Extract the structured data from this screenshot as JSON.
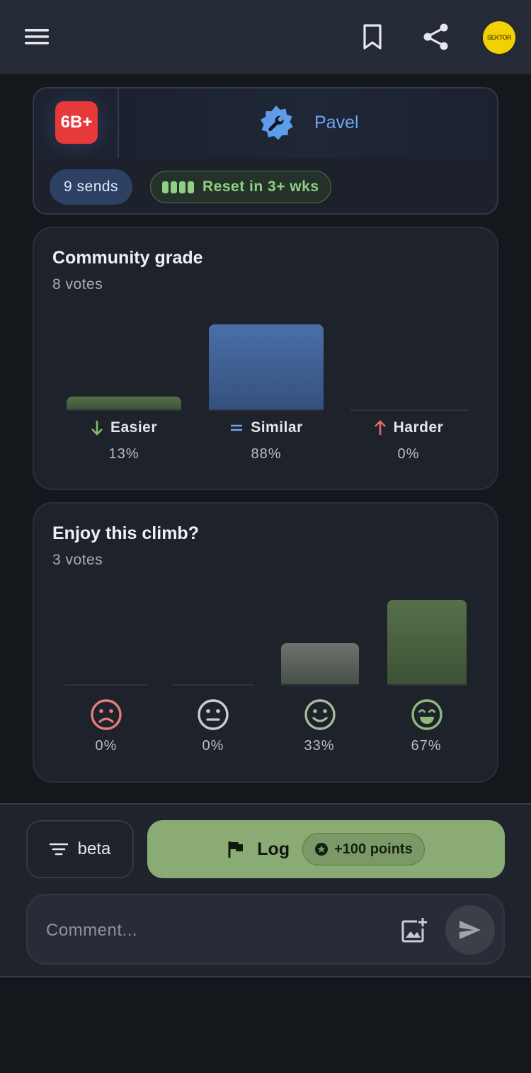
{
  "header": {
    "avatar_text": "SEKTOR"
  },
  "route": {
    "grade": "6B+",
    "grade_color": "#e5393a",
    "setter_name": "Pavel",
    "setter_icon": "wrench-gear-icon",
    "sends_chip": "9 sends",
    "reset_chip": "Reset in 3+ wks"
  },
  "community_grade": {
    "title": "Community grade",
    "votes": "8 votes",
    "columns": [
      {
        "label": "Easier",
        "icon": "arrow-down-icon",
        "pct_label": "13%",
        "value": 0.13,
        "color": "#56704a"
      },
      {
        "label": "Similar",
        "icon": "equals-icon",
        "pct_label": "88%",
        "value": 0.88,
        "color": "#4a6fa8"
      },
      {
        "label": "Harder",
        "icon": "arrow-up-icon",
        "pct_label": "0%",
        "value": 0.0,
        "color": "#c55a5a"
      }
    ]
  },
  "enjoy": {
    "title": "Enjoy this climb?",
    "votes": "3 votes",
    "columns": [
      {
        "icon": "frown-face-icon",
        "pct_label": "0%",
        "value": 0.0
      },
      {
        "icon": "neutral-face-icon",
        "pct_label": "0%",
        "value": 0.0
      },
      {
        "icon": "smile-face-icon",
        "pct_label": "33%",
        "value": 0.33
      },
      {
        "icon": "grin-face-icon",
        "pct_label": "67%",
        "value": 0.67
      }
    ]
  },
  "actions": {
    "beta_label": "beta",
    "log_label": "Log",
    "points_label": "+100 points",
    "comment_placeholder": "Comment..."
  }
}
